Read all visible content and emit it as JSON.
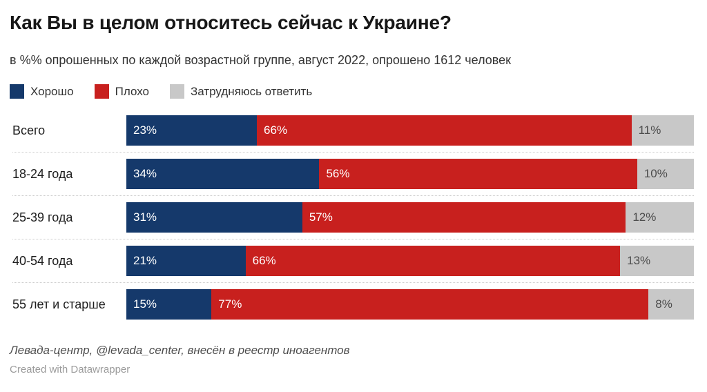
{
  "title": "Как Вы в целом относитесь сейчас к Украине?",
  "subtitle": "в %% опрошенных по каждой возрастной группе, август 2022, опрошено 1612 человек",
  "colors": {
    "good": "#15396b",
    "bad": "#c8201e",
    "neutral": "#c8c8c8",
    "label_on_dark": "#ffffff",
    "label_on_neutral": "#4d4d4d",
    "separator": "#cccccc"
  },
  "legend": [
    {
      "label": "Хорошо",
      "color": "#15396b"
    },
    {
      "label": "Плохо",
      "color": "#c8201e"
    },
    {
      "label": "Затрудняюсь ответить",
      "color": "#c8c8c8"
    }
  ],
  "chart_data": {
    "type": "bar",
    "variant": "horizontal-stacked",
    "categories": [
      "Всего",
      "18-24 года",
      "25-39 года",
      "40-54 года",
      "55 лет и старше"
    ],
    "series": [
      {
        "name": "Хорошо",
        "color": "#15396b",
        "label_color": "#ffffff",
        "values": [
          23,
          34,
          31,
          21,
          15
        ]
      },
      {
        "name": "Плохо",
        "color": "#c8201e",
        "label_color": "#ffffff",
        "values": [
          66,
          56,
          57,
          66,
          77
        ]
      },
      {
        "name": "Затрудняюсь ответить",
        "color": "#c8c8c8",
        "label_color": "#4d4d4d",
        "values": [
          11,
          10,
          12,
          13,
          8
        ]
      }
    ],
    "value_suffix": "%",
    "xlim": [
      0,
      100
    ],
    "grid": false,
    "legend_position": "top"
  },
  "footer": {
    "source": "Левада-центр, @levada_center, внесён в реестр иноагентов",
    "attribution": "Created with Datawrapper"
  }
}
